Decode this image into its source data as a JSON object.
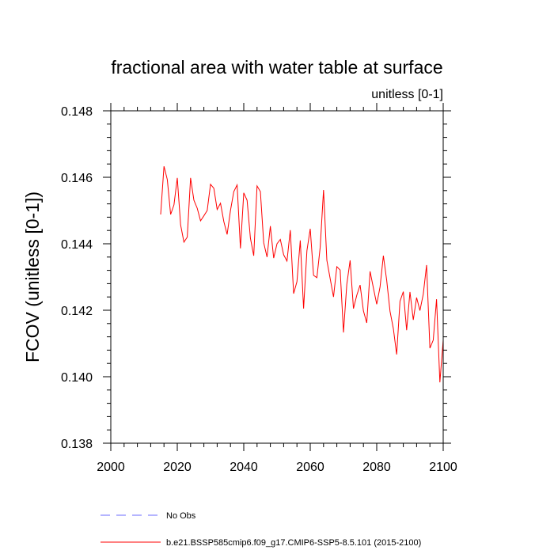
{
  "chart_data": {
    "type": "line",
    "title": "fractional area with water table at surface",
    "subtitle": "unitless [0-1]",
    "ylabel": "FCOV  (unitless [0-1])",
    "xlabel": "",
    "xlim": [
      2000,
      2100
    ],
    "ylim": [
      0.138,
      0.148
    ],
    "x_ticks": [
      2000,
      2020,
      2040,
      2060,
      2080,
      2100
    ],
    "x_tick_labels": [
      "2000",
      "2020",
      "2040",
      "2060",
      "2080",
      "2100"
    ],
    "y_ticks": [
      0.138,
      0.14,
      0.142,
      0.144,
      0.146,
      0.148
    ],
    "y_tick_labels": [
      "0.138",
      "0.140",
      "0.142",
      "0.144",
      "0.146",
      "0.148"
    ],
    "grid": false,
    "legend_position": "bottom",
    "legend": [
      {
        "label": "No Obs",
        "color": "#6b6bff",
        "style": "dashed"
      },
      {
        "label": "b.e21.BSSP585cmip6.f09_g17.CMIP6-SSP5-8.5.101 (2015-2100)",
        "color": "#ff0000",
        "style": "solid"
      }
    ],
    "series": [
      {
        "name": "b.e21.BSSP585cmip6.f09_g17.CMIP6-SSP5-8.5.101 (2015-2100)",
        "color": "#ff0000",
        "x": [
          2015,
          2016,
          2017,
          2018,
          2019,
          2020,
          2021,
          2022,
          2023,
          2024,
          2025,
          2026,
          2027,
          2028,
          2029,
          2030,
          2031,
          2032,
          2033,
          2034,
          2035,
          2036,
          2037,
          2038,
          2039,
          2040,
          2041,
          2042,
          2043,
          2044,
          2045,
          2046,
          2047,
          2048,
          2049,
          2050,
          2051,
          2052,
          2053,
          2054,
          2055,
          2056,
          2057,
          2058,
          2059,
          2060,
          2061,
          2062,
          2063,
          2064,
          2065,
          2066,
          2067,
          2068,
          2069,
          2070,
          2071,
          2072,
          2073,
          2074,
          2075,
          2076,
          2077,
          2078,
          2079,
          2080,
          2081,
          2082,
          2083,
          2084,
          2085,
          2086,
          2087,
          2088,
          2089,
          2090,
          2091,
          2092,
          2093,
          2094,
          2095,
          2096,
          2097,
          2098,
          2099,
          2100
        ],
        "y": [
          0.14488,
          0.14633,
          0.14593,
          0.14488,
          0.14517,
          0.14598,
          0.14457,
          0.14405,
          0.1442,
          0.14598,
          0.14531,
          0.14507,
          0.14469,
          0.14484,
          0.145,
          0.14579,
          0.14567,
          0.14503,
          0.14522,
          0.14467,
          0.14428,
          0.145,
          0.14557,
          0.14577,
          0.14386,
          0.14553,
          0.14531,
          0.14417,
          0.14364,
          0.14574,
          0.14557,
          0.14403,
          0.1436,
          0.14453,
          0.14357,
          0.144,
          0.14413,
          0.14367,
          0.14348,
          0.14441,
          0.1425,
          0.14286,
          0.1441,
          0.14205,
          0.14379,
          0.14445,
          0.14305,
          0.14298,
          0.1439,
          0.14562,
          0.1435,
          0.14295,
          0.1424,
          0.14331,
          0.14321,
          0.14133,
          0.14278,
          0.1435,
          0.14205,
          0.14245,
          0.14276,
          0.14198,
          0.14162,
          0.14317,
          0.14267,
          0.14218,
          0.1427,
          0.14364,
          0.1429,
          0.14197,
          0.14145,
          0.14067,
          0.14227,
          0.14256,
          0.1414,
          0.14255,
          0.14171,
          0.14238,
          0.14199,
          0.14248,
          0.14336,
          0.14086,
          0.1411,
          0.14233,
          0.13983,
          0.1411
        ]
      }
    ]
  }
}
